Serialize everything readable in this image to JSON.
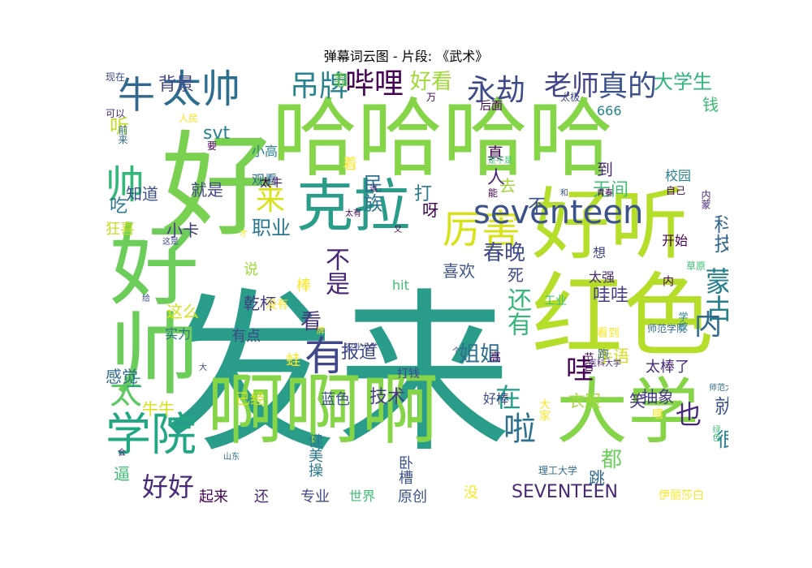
{
  "chart_data": {
    "type": "wordcloud",
    "title": "弹幕词云图 - 片段: 《武术》",
    "words": [
      {
        "text": "发来",
        "color": "#2a9d8a"
      },
      {
        "text": "哈哈哈哈",
        "color": "#86d549"
      },
      {
        "text": "啊啊啊",
        "color": "#86d549"
      },
      {
        "text": "好",
        "color": "#7ad151"
      },
      {
        "text": "好听",
        "color": "#b5de2b"
      },
      {
        "text": "红色",
        "color": "#b5de2b"
      },
      {
        "text": "大学",
        "color": "#86d549"
      },
      {
        "text": "好帅",
        "color": "#6ccd5a"
      },
      {
        "text": "克拉",
        "color": "#2a9d8a"
      },
      {
        "text": "学院",
        "color": "#22a785"
      },
      {
        "text": "太帅",
        "color": "#2e6e8e"
      },
      {
        "text": "厉害",
        "color": "#d8e219"
      },
      {
        "text": "seventeen",
        "color": "#3b528b"
      },
      {
        "text": "有",
        "color": "#3f4889"
      },
      {
        "text": "帅",
        "color": "#35b779"
      },
      {
        "text": "牛",
        "color": "#31688e"
      },
      {
        "text": "吊牌",
        "color": "#26828e"
      },
      {
        "text": "哔哩",
        "color": "#440154"
      },
      {
        "text": "永劫",
        "color": "#3e4a89"
      },
      {
        "text": "真的",
        "color": "#3b528b"
      },
      {
        "text": "老师",
        "color": "#414487"
      },
      {
        "text": "大学生",
        "color": "#2fb47c"
      },
      {
        "text": "好看",
        "color": "#a0da39"
      },
      {
        "text": "蒙古",
        "color": "#27808e"
      },
      {
        "text": "内",
        "color": "#31688e"
      },
      {
        "text": "不是",
        "color": "#482576"
      },
      {
        "text": "还有",
        "color": "#35b779"
      },
      {
        "text": "哇",
        "color": "#440154"
      },
      {
        "text": "在",
        "color": "#1f9e89"
      },
      {
        "text": "太",
        "color": "#5ec962"
      },
      {
        "text": "好好",
        "color": "#482878"
      },
      {
        "text": "啦",
        "color": "#2c728e"
      },
      {
        "text": "来",
        "color": "#d8e219"
      },
      {
        "text": "春晚",
        "color": "#3e4a89"
      },
      {
        "text": "职业",
        "color": "#2a788e"
      },
      {
        "text": "看",
        "color": "#46327e"
      },
      {
        "text": "科技",
        "color": "#31688e"
      },
      {
        "text": "也",
        "color": "#482878"
      },
      {
        "text": "民族",
        "color": "#2c728e"
      },
      {
        "text": "姐姐",
        "color": "#2e6e8e"
      },
      {
        "text": "技术",
        "color": "#443983"
      },
      {
        "text": "都",
        "color": "#6ccd5a"
      },
      {
        "text": "就",
        "color": "#3b528b"
      },
      {
        "text": "很",
        "color": "#26828e"
      },
      {
        "text": "上",
        "color": "#1fa187"
      },
      {
        "text": "感觉",
        "color": "#2e6e8e"
      },
      {
        "text": "小卡",
        "color": "#443983"
      },
      {
        "text": "乾杯",
        "color": "#443983"
      },
      {
        "text": "喜欢",
        "color": "#3b528b"
      },
      {
        "text": "报道",
        "color": "#3f4889"
      },
      {
        "text": "哇哇",
        "color": "#433e85"
      },
      {
        "text": "SEVENTEEN",
        "color": "#482878"
      },
      {
        "text": "打",
        "color": "#2a788e"
      },
      {
        "text": "人",
        "color": "#482576"
      },
      {
        "text": "去",
        "color": "#a0da39"
      },
      {
        "text": "不",
        "color": "#3b528b"
      },
      {
        "text": "无间",
        "color": "#3fbc73"
      },
      {
        "text": "吃",
        "color": "#2a788e"
      },
      {
        "text": "听",
        "color": "#c2df23"
      },
      {
        "text": "背景",
        "color": "#404688"
      },
      {
        "text": "靠",
        "color": "#75d054"
      },
      {
        "text": "钱",
        "color": "#3dbc74"
      },
      {
        "text": "真",
        "color": "#440154"
      },
      {
        "text": "到",
        "color": "#482878"
      },
      {
        "text": "知道",
        "color": "#3b528b"
      },
      {
        "text": "就是",
        "color": "#404688"
      },
      {
        "text": "svt",
        "color": "#26828e"
      },
      {
        "text": "抽象",
        "color": "#443983"
      },
      {
        "text": "笑",
        "color": "#46327e"
      },
      {
        "text": "跳",
        "color": "#31688e"
      },
      {
        "text": "太棒了",
        "color": "#482878"
      },
      {
        "text": "手语",
        "color": "#d8e219"
      },
      {
        "text": "衣服",
        "color": "#a0da39"
      },
      {
        "text": "死",
        "color": "#3e4a89"
      },
      {
        "text": "呀",
        "color": "#440154"
      },
      {
        "text": "牛牛",
        "color": "#d8e219"
      },
      {
        "text": "蓝色",
        "color": "#3b528b"
      },
      {
        "text": "已经",
        "color": "#d8e219"
      },
      {
        "text": "说",
        "color": "#a0da39"
      },
      {
        "text": "这么",
        "color": "#d8e219"
      },
      {
        "text": "棒",
        "color": "#fde725"
      },
      {
        "text": "有点",
        "color": "#3e4a89"
      },
      {
        "text": "实力",
        "color": "#2e6e8e"
      },
      {
        "text": "蛙",
        "color": "#fde725"
      },
      {
        "text": "逼",
        "color": "#3fbc73"
      },
      {
        "text": "还",
        "color": "#482878"
      },
      {
        "text": "专业",
        "color": "#3f4889"
      },
      {
        "text": "原创",
        "color": "#3b528b"
      },
      {
        "text": "没",
        "color": "#fde725"
      },
      {
        "text": "起来",
        "color": "#440154"
      },
      {
        "text": "世界",
        "color": "#3fbc73"
      },
      {
        "text": "好棒",
        "color": "#3e4a89"
      },
      {
        "text": "健美操",
        "color": "#2a788e"
      },
      {
        "text": "卧槽",
        "color": "#3b528b"
      },
      {
        "text": "小高",
        "color": "#26828e"
      },
      {
        "text": "观看",
        "color": "#2e6e8e"
      },
      {
        "text": "着",
        "color": "#fde725"
      },
      {
        "text": "太牛",
        "color": "#440154"
      },
      {
        "text": "狂喜",
        "color": "#c2df23"
      },
      {
        "text": "666",
        "color": "#26828e"
      },
      {
        "text": "校园",
        "color": "#26828e"
      },
      {
        "text": "开始",
        "color": "#440154"
      },
      {
        "text": "想",
        "color": "#414487"
      },
      {
        "text": "太强",
        "color": "#482878"
      },
      {
        "text": "hit",
        "color": "#3fbc73"
      },
      {
        "text": "没有",
        "color": "#fde725"
      },
      {
        "text": "高",
        "color": "#440154"
      },
      {
        "text": "工业",
        "color": "#3fbc73"
      },
      {
        "text": "看到",
        "color": "#fde725"
      },
      {
        "text": "打钱",
        "color": "#3e4a89"
      },
      {
        "text": "跑",
        "color": "#31688e"
      },
      {
        "text": "嘻",
        "color": "#fde725"
      },
      {
        "text": "大家",
        "color": "#fde725"
      },
      {
        "text": "理工大学",
        "color": "#2e6e8e"
      },
      {
        "text": "现在",
        "color": "#3e4a89"
      },
      {
        "text": "可以",
        "color": "#482878"
      },
      {
        "text": "前来",
        "color": "#2e6e8e"
      },
      {
        "text": "人民",
        "color": "#fde725"
      },
      {
        "text": "要",
        "color": "#440154"
      },
      {
        "text": "万",
        "color": "#440154"
      },
      {
        "text": "太极",
        "color": "#3e4a89"
      },
      {
        "text": "后面",
        "color": "#440154"
      },
      {
        "text": "自己",
        "color": "#440154"
      },
      {
        "text": "和",
        "color": "#3b528b"
      },
      {
        "text": "青春",
        "color": "#440154"
      },
      {
        "text": "能",
        "color": "#440154"
      },
      {
        "text": "是不是",
        "color": "#3fbc73"
      },
      {
        "text": "谁",
        "color": "#482878"
      },
      {
        "text": "太有",
        "color": "#440154"
      },
      {
        "text": "又",
        "color": "#440154"
      },
      {
        "text": "才",
        "color": "#fde725"
      },
      {
        "text": "这是",
        "color": "#3e4a89"
      },
      {
        "text": "给",
        "color": "#3e4a89"
      },
      {
        "text": "会",
        "color": "#482878"
      },
      {
        "text": "山东",
        "color": "#2e6e8e"
      },
      {
        "text": "大",
        "color": "#3e4a89"
      },
      {
        "text": "牌",
        "color": "#fde725"
      },
      {
        "text": "农业大学",
        "color": "#3e4a89"
      },
      {
        "text": "个",
        "color": "#3b528b"
      },
      {
        "text": "节目",
        "color": "#440154"
      },
      {
        "text": "医科大学",
        "color": "#482878"
      },
      {
        "text": "内蒙",
        "color": "#482878"
      },
      {
        "text": "师范学院",
        "color": "#31688e"
      },
      {
        "text": "草原",
        "color": "#3fbc73"
      },
      {
        "text": "内",
        "color": "#440154"
      },
      {
        "text": "学校",
        "color": "#26828e"
      },
      {
        "text": "师范大学",
        "color": "#2e6e8e"
      },
      {
        "text": "绿色",
        "color": "#3fbc73"
      },
      {
        "text": "伊丽莎白",
        "color": "#fde725"
      }
    ]
  }
}
